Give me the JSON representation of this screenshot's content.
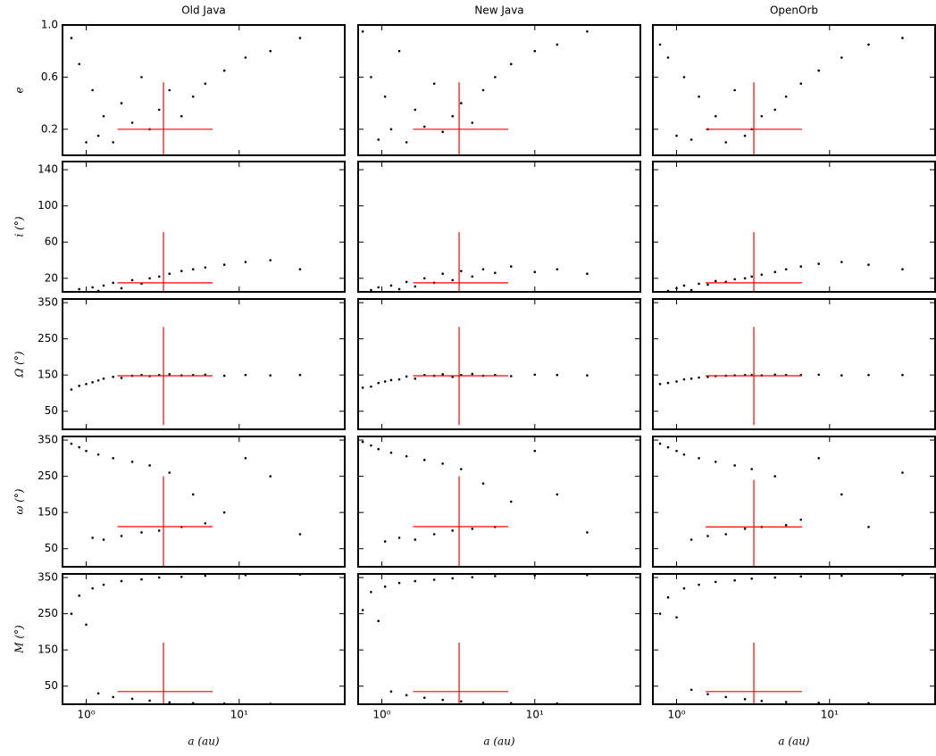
{
  "chart_data": [
    {
      "type": "scatter",
      "title": "Old Java",
      "ylabel": "e",
      "x": [
        0.8,
        0.9,
        1.0,
        1.1,
        1.2,
        1.3,
        1.5,
        1.7,
        2.0,
        2.3,
        2.6,
        3.0,
        3.5,
        4.2,
        5,
        6,
        8,
        11,
        16,
        25
      ],
      "y": [
        0.9,
        0.7,
        0.1,
        0.5,
        0.15,
        0.3,
        0.1,
        0.4,
        0.25,
        0.6,
        0.2,
        0.35,
        0.5,
        0.3,
        0.45,
        0.55,
        0.65,
        0.75,
        0.8,
        0.9
      ],
      "xlim": [
        0.7,
        49
      ],
      "log_x": true,
      "xticks": [
        {
          "value": 1,
          "label": "10⁰"
        },
        {
          "value": 10,
          "label": "10¹"
        }
      ],
      "ylim": [
        0,
        1
      ],
      "yticks": [
        0.2,
        0.6,
        {
          "value": 1,
          "label": "1.0"
        }
      ],
      "color": "#000000",
      "reference": {
        "x": 3.2,
        "y": 0.2,
        "x_range": [
          1.6,
          6.7
        ],
        "y_range": [
          0,
          0.56
        ],
        "color": "#ff0000"
      }
    },
    {
      "type": "scatter",
      "title": "New Java",
      "x": [
        0.75,
        0.85,
        0.95,
        1.05,
        1.15,
        1.3,
        1.45,
        1.65,
        1.9,
        2.2,
        2.5,
        2.9,
        3.3,
        3.9,
        4.6,
        5.5,
        7,
        10,
        14,
        22
      ],
      "y": [
        0.95,
        0.6,
        0.12,
        0.45,
        0.2,
        0.8,
        0.1,
        0.35,
        0.22,
        0.55,
        0.18,
        0.3,
        0.4,
        0.25,
        0.5,
        0.6,
        0.7,
        0.8,
        0.85,
        0.95
      ],
      "xlim": [
        0.7,
        49
      ],
      "log_x": true,
      "xticks": [
        {
          "value": 1,
          "label": "10⁰"
        },
        {
          "value": 10,
          "label": "10¹"
        }
      ],
      "ylim": [
        0,
        1
      ],
      "yticks": [
        0.2,
        0.6,
        {
          "value": 1,
          "label": "1.0"
        }
      ],
      "color": "#000000",
      "reference": {
        "x": 3.2,
        "y": 0.2,
        "x_range": [
          1.6,
          6.7
        ],
        "y_range": [
          0,
          0.56
        ],
        "color": "#ff0000"
      }
    },
    {
      "type": "scatter",
      "title": "OpenOrb",
      "x": [
        0.78,
        0.88,
        1.0,
        1.12,
        1.25,
        1.4,
        1.6,
        1.8,
        2.1,
        2.4,
        2.8,
        3.1,
        3.6,
        4.4,
        5.2,
        6.5,
        8.5,
        12,
        18,
        30
      ],
      "y": [
        0.85,
        0.75,
        0.15,
        0.6,
        0.12,
        0.45,
        0.2,
        0.3,
        0.1,
        0.5,
        0.15,
        0.2,
        0.3,
        0.35,
        0.45,
        0.55,
        0.65,
        0.75,
        0.85,
        0.9
      ],
      "xlim": [
        0.7,
        49
      ],
      "log_x": true,
      "xticks": [
        {
          "value": 1,
          "label": "10⁰"
        },
        {
          "value": 10,
          "label": "10¹"
        }
      ],
      "ylim": [
        0,
        1
      ],
      "yticks": [
        0.2,
        0.6,
        {
          "value": 1,
          "label": "1.0"
        }
      ],
      "color": "#000000",
      "reference": {
        "x": 3.2,
        "y": 0.2,
        "x_range": [
          1.55,
          6.6
        ],
        "y_range": [
          0,
          0.56
        ],
        "color": "#ff0000"
      }
    },
    {
      "type": "scatter",
      "ylabel": "i (°)",
      "x": [
        0.8,
        0.9,
        1.0,
        1.1,
        1.2,
        1.3,
        1.5,
        1.7,
        2.0,
        2.3,
        2.6,
        3.0,
        3.5,
        4.2,
        5,
        6,
        8,
        11,
        16,
        25
      ],
      "y": [
        5,
        8,
        3,
        10,
        6,
        12,
        15,
        9,
        18,
        14,
        20,
        22,
        25,
        28,
        30,
        32,
        35,
        38,
        40,
        30
      ],
      "xlim": [
        0.7,
        49
      ],
      "log_x": true,
      "xticks": [
        {
          "value": 1,
          "label": "10⁰"
        },
        {
          "value": 10,
          "label": "10¹"
        }
      ],
      "ylim": [
        5,
        149
      ],
      "yticks": [
        20,
        60,
        100,
        140
      ],
      "color": "#000000",
      "reference": {
        "x": 3.2,
        "y": 15,
        "x_range": [
          1.6,
          6.7
        ],
        "y_range": [
          5,
          71
        ],
        "color": "#ff0000"
      }
    },
    {
      "type": "scatter",
      "x": [
        0.75,
        0.85,
        0.95,
        1.05,
        1.15,
        1.3,
        1.45,
        1.65,
        1.9,
        2.2,
        2.5,
        2.9,
        3.3,
        3.9,
        4.6,
        5.5,
        7,
        10,
        14,
        22
      ],
      "y": [
        3,
        7,
        10,
        4,
        12,
        8,
        16,
        11,
        20,
        15,
        25,
        18,
        28,
        22,
        30,
        26,
        33,
        27,
        30,
        25
      ],
      "xlim": [
        0.7,
        49
      ],
      "log_x": true,
      "xticks": [
        {
          "value": 1,
          "label": "10⁰"
        },
        {
          "value": 10,
          "label": "10¹"
        }
      ],
      "ylim": [
        5,
        149
      ],
      "yticks": [
        20,
        60,
        100,
        140
      ],
      "color": "#000000",
      "reference": {
        "x": 3.2,
        "y": 15,
        "x_range": [
          1.6,
          6.7
        ],
        "y_range": [
          5,
          71
        ],
        "color": "#ff0000"
      }
    },
    {
      "type": "scatter",
      "x": [
        0.78,
        0.88,
        1.0,
        1.12,
        1.25,
        1.4,
        1.6,
        1.8,
        2.1,
        2.4,
        2.8,
        3.1,
        3.6,
        4.4,
        5.2,
        6.5,
        8.5,
        12,
        18,
        30
      ],
      "y": [
        4,
        6,
        9,
        12,
        7,
        14,
        13,
        17,
        16,
        19,
        20,
        22,
        24,
        27,
        30,
        33,
        36,
        38,
        35,
        30
      ],
      "xlim": [
        0.7,
        49
      ],
      "log_x": true,
      "xticks": [
        {
          "value": 1,
          "label": "10⁰"
        },
        {
          "value": 10,
          "label": "10¹"
        }
      ],
      "ylim": [
        5,
        149
      ],
      "yticks": [
        20,
        60,
        100,
        140
      ],
      "color": "#000000",
      "reference": {
        "x": 3.2,
        "y": 15,
        "x_range": [
          1.55,
          6.6
        ],
        "y_range": [
          5,
          71
        ],
        "color": "#ff0000"
      }
    },
    {
      "type": "scatter",
      "ylabel": "Ω (°)",
      "x": [
        0.8,
        0.9,
        1.0,
        1.1,
        1.2,
        1.3,
        1.5,
        1.7,
        2.0,
        2.3,
        2.6,
        3.0,
        3.5,
        4.2,
        5,
        6,
        8,
        11,
        16,
        25
      ],
      "y": [
        110,
        120,
        125,
        130,
        135,
        140,
        145,
        142,
        148,
        150,
        147,
        150,
        152,
        149,
        150,
        151,
        148,
        150,
        149,
        150
      ],
      "xlim": [
        0.7,
        49
      ],
      "log_x": true,
      "xticks": [
        {
          "value": 1,
          "label": "10⁰"
        },
        {
          "value": 10,
          "label": "10¹"
        }
      ],
      "ylim": [
        0,
        360
      ],
      "yticks": [
        50,
        150,
        250,
        350
      ],
      "color": "#000000",
      "reference": {
        "x": 3.2,
        "y": 148,
        "x_range": [
          1.6,
          6.7
        ],
        "y_range": [
          12,
          283
        ],
        "color": "#ff0000"
      }
    },
    {
      "type": "scatter",
      "x": [
        0.75,
        0.85,
        0.95,
        1.05,
        1.15,
        1.3,
        1.45,
        1.65,
        1.9,
        2.2,
        2.5,
        2.9,
        3.3,
        3.9,
        4.6,
        5.5,
        7,
        10,
        14,
        22
      ],
      "y": [
        115,
        118,
        128,
        132,
        136,
        138,
        146,
        140,
        150,
        148,
        152,
        145,
        150,
        153,
        148,
        150,
        147,
        151,
        150,
        149
      ],
      "xlim": [
        0.7,
        49
      ],
      "log_x": true,
      "xticks": [
        {
          "value": 1,
          "label": "10⁰"
        },
        {
          "value": 10,
          "label": "10¹"
        }
      ],
      "ylim": [
        0,
        360
      ],
      "yticks": [
        50,
        150,
        250,
        350
      ],
      "color": "#000000",
      "reference": {
        "x": 3.2,
        "y": 148,
        "x_range": [
          1.6,
          6.7
        ],
        "y_range": [
          12,
          283
        ],
        "color": "#ff0000"
      }
    },
    {
      "type": "scatter",
      "x": [
        0.78,
        0.88,
        1.0,
        1.12,
        1.25,
        1.4,
        1.6,
        1.8,
        2.1,
        2.4,
        2.8,
        3.1,
        3.6,
        4.4,
        5.2,
        6.5,
        8.5,
        12,
        18,
        30
      ],
      "y": [
        125,
        128,
        132,
        138,
        140,
        143,
        145,
        147,
        148,
        149,
        150,
        150,
        149,
        151,
        150,
        150,
        151,
        149,
        150,
        150
      ],
      "xlim": [
        0.7,
        49
      ],
      "log_x": true,
      "xticks": [
        {
          "value": 1,
          "label": "10⁰"
        },
        {
          "value": 10,
          "label": "10¹"
        }
      ],
      "ylim": [
        0,
        360
      ],
      "yticks": [
        50,
        150,
        250,
        350
      ],
      "color": "#000000",
      "reference": {
        "x": 3.2,
        "y": 148,
        "x_range": [
          1.55,
          6.6
        ],
        "y_range": [
          12,
          283
        ],
        "color": "#ff0000"
      }
    },
    {
      "type": "scatter",
      "ylabel": "ω (°)",
      "x": [
        0.8,
        0.9,
        1.0,
        1.1,
        1.2,
        1.3,
        1.5,
        1.7,
        2.0,
        2.3,
        2.6,
        3.0,
        3.5,
        4.2,
        5,
        6,
        8,
        11,
        16,
        25
      ],
      "y": [
        340,
        330,
        320,
        80,
        310,
        75,
        300,
        85,
        290,
        95,
        280,
        100,
        260,
        110,
        200,
        120,
        150,
        300,
        250,
        90
      ],
      "xlim": [
        0.7,
        49
      ],
      "log_x": true,
      "xticks": [
        {
          "value": 1,
          "label": "10⁰"
        },
        {
          "value": 10,
          "label": "10¹"
        }
      ],
      "ylim": [
        0,
        360
      ],
      "yticks": [
        50,
        150,
        250,
        350
      ],
      "color": "#000000",
      "reference": {
        "x": 3.2,
        "y": 111,
        "x_range": [
          1.6,
          6.7
        ],
        "y_range": [
          0,
          250
        ],
        "color": "#ff0000"
      }
    },
    {
      "type": "scatter",
      "x": [
        0.75,
        0.85,
        0.95,
        1.05,
        1.15,
        1.3,
        1.45,
        1.65,
        1.9,
        2.2,
        2.5,
        2.9,
        3.3,
        3.9,
        4.6,
        5.5,
        7,
        10,
        14,
        22
      ],
      "y": [
        345,
        335,
        325,
        70,
        315,
        80,
        305,
        75,
        295,
        90,
        285,
        100,
        270,
        105,
        230,
        110,
        180,
        320,
        200,
        95
      ],
      "xlim": [
        0.7,
        49
      ],
      "log_x": true,
      "xticks": [
        {
          "value": 1,
          "label": "10⁰"
        },
        {
          "value": 10,
          "label": "10¹"
        }
      ],
      "ylim": [
        0,
        360
      ],
      "yticks": [
        50,
        150,
        250,
        350
      ],
      "color": "#000000",
      "reference": {
        "x": 3.2,
        "y": 111,
        "x_range": [
          1.6,
          6.7
        ],
        "y_range": [
          0,
          250
        ],
        "color": "#ff0000"
      }
    },
    {
      "type": "scatter",
      "x": [
        0.78,
        0.88,
        1.0,
        1.12,
        1.25,
        1.4,
        1.6,
        1.8,
        2.1,
        2.4,
        2.8,
        3.1,
        3.6,
        4.4,
        5.2,
        6.5,
        8.5,
        12,
        18,
        30
      ],
      "y": [
        340,
        330,
        320,
        310,
        75,
        300,
        85,
        290,
        90,
        280,
        105,
        270,
        110,
        250,
        115,
        130,
        300,
        200,
        110,
        260
      ],
      "xlim": [
        0.7,
        49
      ],
      "log_x": true,
      "xticks": [
        {
          "value": 1,
          "label": "10⁰"
        },
        {
          "value": 10,
          "label": "10¹"
        }
      ],
      "ylim": [
        0,
        360
      ],
      "yticks": [
        50,
        150,
        250,
        350
      ],
      "color": "#000000",
      "reference": {
        "x": 3.2,
        "y": 110,
        "x_range": [
          1.55,
          6.6
        ],
        "y_range": [
          0,
          240
        ],
        "color": "#ff0000"
      }
    },
    {
      "type": "scatter",
      "ylabel": "M (°)",
      "xlabel": "a (au)",
      "x": [
        0.8,
        0.9,
        1.0,
        1.1,
        1.2,
        1.3,
        1.5,
        1.7,
        2.0,
        2.3,
        2.6,
        3.0,
        3.5,
        4.2,
        5,
        6,
        8,
        11,
        16,
        25
      ],
      "y": [
        250,
        300,
        220,
        320,
        30,
        330,
        20,
        340,
        15,
        345,
        10,
        350,
        5,
        352,
        3,
        355,
        2,
        357,
        1,
        358
      ],
      "xlim": [
        0.7,
        49
      ],
      "log_x": true,
      "xticks": [
        {
          "value": 1,
          "label": "10⁰"
        },
        {
          "value": 10,
          "label": "10¹"
        }
      ],
      "ylim": [
        0,
        360
      ],
      "yticks": [
        50,
        150,
        250,
        350
      ],
      "color": "#000000",
      "reference": {
        "x": 3.2,
        "y": 35,
        "x_range": [
          1.6,
          6.7
        ],
        "y_range": [
          0,
          170
        ],
        "color": "#ff0000"
      }
    },
    {
      "type": "scatter",
      "xlabel": "a (au)",
      "x": [
        0.75,
        0.85,
        0.95,
        1.05,
        1.15,
        1.3,
        1.45,
        1.65,
        1.9,
        2.2,
        2.5,
        2.9,
        3.3,
        3.9,
        4.6,
        5.5,
        7,
        10,
        14,
        22
      ],
      "y": [
        260,
        310,
        230,
        325,
        35,
        335,
        25,
        340,
        18,
        344,
        12,
        348,
        8,
        351,
        4,
        354,
        3,
        356,
        2,
        357
      ],
      "xlim": [
        0.7,
        49
      ],
      "log_x": true,
      "xticks": [
        {
          "value": 1,
          "label": "10⁰"
        },
        {
          "value": 10,
          "label": "10¹"
        }
      ],
      "ylim": [
        0,
        360
      ],
      "yticks": [
        50,
        150,
        250,
        350
      ],
      "color": "#000000",
      "reference": {
        "x": 3.2,
        "y": 35,
        "x_range": [
          1.6,
          6.7
        ],
        "y_range": [
          0,
          170
        ],
        "color": "#ff0000"
      }
    },
    {
      "type": "scatter",
      "xlabel": "a (au)",
      "x": [
        0.78,
        0.88,
        1.0,
        1.12,
        1.25,
        1.4,
        1.6,
        1.8,
        2.1,
        2.4,
        2.8,
        3.1,
        3.6,
        4.4,
        5.2,
        6.5,
        8.5,
        12,
        18,
        30
      ],
      "y": [
        250,
        295,
        240,
        320,
        40,
        330,
        28,
        338,
        20,
        342,
        14,
        347,
        9,
        350,
        6,
        353,
        4,
        355,
        3,
        357
      ],
      "xlim": [
        0.7,
        49
      ],
      "log_x": true,
      "xticks": [
        {
          "value": 1,
          "label": "10⁰"
        },
        {
          "value": 10,
          "label": "10¹"
        }
      ],
      "ylim": [
        0,
        360
      ],
      "yticks": [
        50,
        150,
        250,
        350
      ],
      "color": "#000000",
      "reference": {
        "x": 3.2,
        "y": 35,
        "x_range": [
          1.55,
          6.6
        ],
        "y_range": [
          0,
          170
        ],
        "color": "#ff0000"
      }
    }
  ]
}
